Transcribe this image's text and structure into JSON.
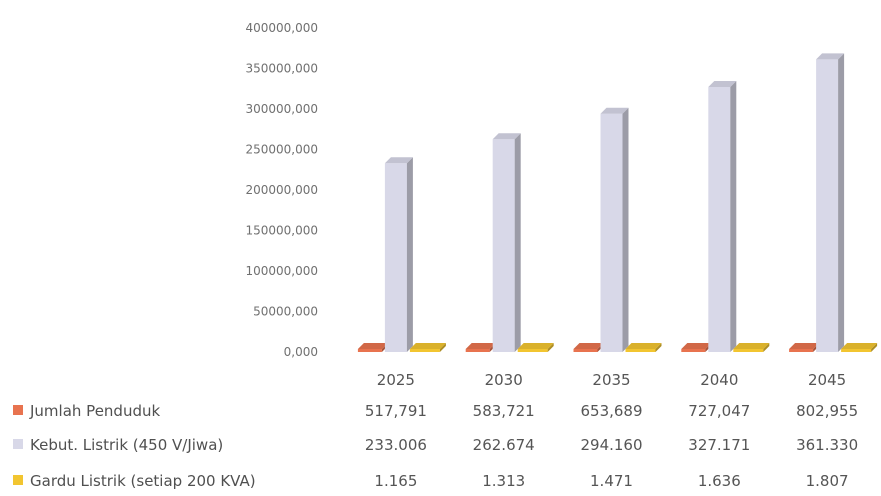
{
  "chart_data": {
    "type": "bar",
    "categories": [
      "2025",
      "2030",
      "2035",
      "2040",
      "2045"
    ],
    "y_ticks": [
      "0,000",
      "50000,000",
      "100000,000",
      "150000,000",
      "200000,000",
      "250000,000",
      "300000,000",
      "350000,000",
      "400000,000"
    ],
    "ylim": [
      0,
      400000
    ],
    "grid": false,
    "legend": "table-bottom",
    "series": [
      {
        "name": "Jumlah Penduduk",
        "color": "#e8734f",
        "values": [
          517.791,
          583.721,
          653.689,
          727.047,
          802.955
        ],
        "labels": [
          "517,791",
          "583,721",
          "653,689",
          "727,047",
          "802,955"
        ]
      },
      {
        "name": "Kebut. Listrik (450 V/Jiwa)",
        "color": "#d8d8e8",
        "values": [
          233006,
          262674,
          294160,
          327171,
          361330
        ],
        "labels": [
          "233.006",
          "262.674",
          "294.160",
          "327.171",
          "361.330"
        ]
      },
      {
        "name": "Gardu Listrik (setiap 200 KVA)",
        "color": "#f2c530",
        "values": [
          1165,
          1313,
          1471,
          1636,
          1807
        ],
        "labels": [
          "1.165",
          "1.313",
          "1.471",
          "1.636",
          "1.807"
        ]
      }
    ]
  }
}
